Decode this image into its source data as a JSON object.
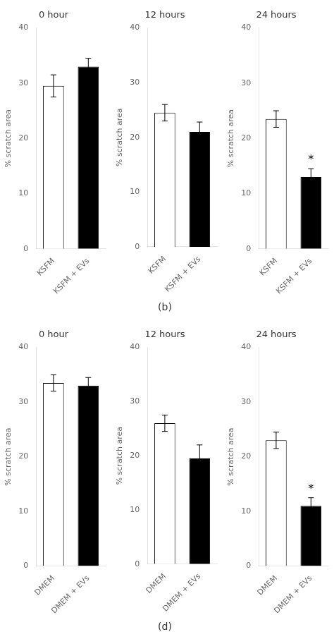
{
  "chart_data": [
    {
      "type": "bar",
      "title": "0 hour",
      "ylabel": "% scratch area",
      "categories": [
        "KSFM",
        "KSFM + EVs"
      ],
      "values": [
        29.5,
        33.0
      ],
      "errors": [
        2.0,
        1.5
      ],
      "colors": [
        "#ffffff",
        "#000000"
      ],
      "ylim": [
        0,
        40
      ],
      "yticks": [
        0,
        10,
        20,
        30,
        40
      ],
      "grid": false
    },
    {
      "type": "bar",
      "title": "12 hours",
      "subtitle": "(b)",
      "ylabel": "% scratch area",
      "categories": [
        "KSFM",
        "KSFM + EVs"
      ],
      "values": [
        24.5,
        21.0
      ],
      "errors": [
        1.5,
        1.8
      ],
      "colors": [
        "#ffffff",
        "#000000"
      ],
      "ylim": [
        0,
        40
      ],
      "yticks": [
        0,
        10,
        20,
        30,
        40
      ],
      "grid": false
    },
    {
      "type": "bar",
      "title": "24 hours",
      "ylabel": "% scratch area",
      "categories": [
        "KSFM",
        "KSFM + EVs"
      ],
      "values": [
        23.5,
        13.0
      ],
      "errors": [
        1.5,
        1.5
      ],
      "colors": [
        "#ffffff",
        "#000000"
      ],
      "ylim": [
        0,
        40
      ],
      "yticks": [
        0,
        10,
        20,
        30,
        40
      ],
      "grid": false,
      "annotations": [
        {
          "category": "KSFM + EVs",
          "text": "*"
        }
      ]
    },
    {
      "type": "bar",
      "title": "0 hour",
      "ylabel": "% scratch area",
      "categories": [
        "DMEM",
        "DMEM + EVs"
      ],
      "values": [
        33.5,
        33.0
      ],
      "errors": [
        1.5,
        1.5
      ],
      "colors": [
        "#ffffff",
        "#000000"
      ],
      "ylim": [
        0,
        40
      ],
      "yticks": [
        0,
        10,
        20,
        30,
        40
      ],
      "grid": false
    },
    {
      "type": "bar",
      "title": "12 hours",
      "subtitle": "(d)",
      "ylabel": "% scratch area",
      "categories": [
        "DMEM",
        "DMEM + EVs"
      ],
      "values": [
        26.0,
        19.5
      ],
      "errors": [
        1.5,
        2.5
      ],
      "colors": [
        "#ffffff",
        "#000000"
      ],
      "ylim": [
        0,
        40
      ],
      "yticks": [
        0,
        10,
        20,
        30,
        40
      ],
      "grid": false
    },
    {
      "type": "bar",
      "title": "24 hours",
      "ylabel": "% scratch area",
      "categories": [
        "DMEM",
        "DMEM + EVs"
      ],
      "values": [
        23.0,
        11.0
      ],
      "errors": [
        1.5,
        1.5
      ],
      "colors": [
        "#ffffff",
        "#000000"
      ],
      "ylim": [
        0,
        40
      ],
      "yticks": [
        0,
        10,
        20,
        30,
        40
      ],
      "grid": false,
      "annotations": [
        {
          "category": "DMEM + EVs",
          "text": "*"
        }
      ]
    }
  ]
}
